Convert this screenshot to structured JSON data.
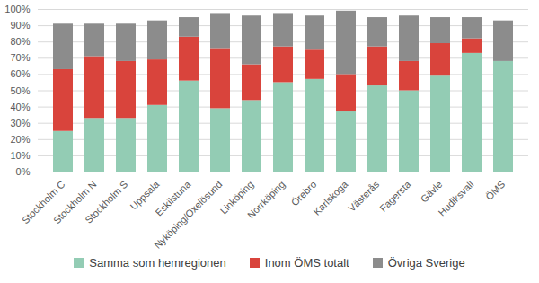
{
  "chart_data": {
    "type": "bar",
    "stacked": true,
    "grid": true,
    "legend": "bottom",
    "categories": [
      "Stockholm C",
      "Stockholm N",
      "Stockholm S",
      "Uppsala",
      "Eskilstuna",
      "Nyköping/Oxelösund",
      "Linköping",
      "Norrköping",
      "Örebro",
      "Karlskoga",
      "Västerås",
      "Fagersta",
      "Gävle",
      "Hudiksvall",
      "ÖMS"
    ],
    "series": [
      {
        "name": "Samma som hemregionen",
        "color": "#93ccb4",
        "values": [
          25,
          33,
          33,
          41,
          56,
          39,
          44,
          55,
          57,
          37,
          53,
          50,
          59,
          73,
          68
        ]
      },
      {
        "name": "Inom ÖMS totalt",
        "color": "#d9443c",
        "values": [
          38,
          38,
          35,
          28,
          27,
          37,
          22,
          22,
          18,
          23,
          24,
          18,
          20,
          9,
          0
        ]
      },
      {
        "name": "Övriga Sverige",
        "color": "#8c8c8c",
        "values": [
          28,
          20,
          23,
          24,
          12,
          21,
          30,
          20,
          21,
          39,
          18,
          28,
          16,
          13,
          25
        ]
      }
    ],
    "ylim": [
      0,
      100
    ],
    "yticks": [
      {
        "value": 0,
        "label": "0%"
      },
      {
        "value": 10,
        "label": "10%"
      },
      {
        "value": 20,
        "label": "20%"
      },
      {
        "value": 30,
        "label": "30%"
      },
      {
        "value": 40,
        "label": "40%"
      },
      {
        "value": 50,
        "label": "50%"
      },
      {
        "value": 60,
        "label": "60%"
      },
      {
        "value": 70,
        "label": "70%"
      },
      {
        "value": 80,
        "label": "80%"
      },
      {
        "value": 90,
        "label": "90%"
      },
      {
        "value": 100,
        "label": "100%"
      }
    ]
  }
}
